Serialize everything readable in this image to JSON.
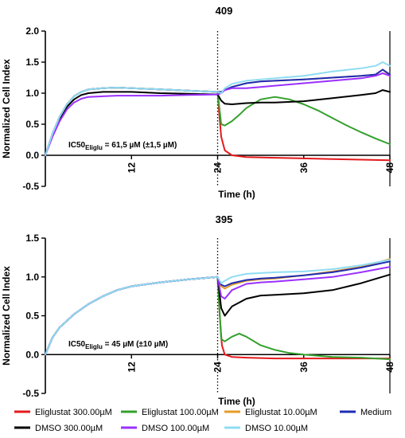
{
  "chart_data": [
    {
      "type": "line",
      "title": "409",
      "xlabel": "Time (h)",
      "ylabel": "Normalized Cell Index",
      "xlim": [
        0,
        48
      ],
      "ylim": [
        -0.5,
        2.0
      ],
      "yticks": [
        -0.5,
        0.0,
        0.5,
        1.0,
        1.5,
        2.0
      ],
      "ytick_labels": [
        "-0.5",
        "0.0",
        "0.5",
        "1.0",
        "1.5",
        "2.0"
      ],
      "xticks": [
        12,
        24,
        36,
        48
      ],
      "xtick_labels": [
        "12",
        "24",
        "36",
        "48"
      ],
      "treatment_line_x": 24,
      "annotation": {
        "prefix": "IC50",
        "subscript": "Eliglu",
        "suffix": " = 61,5 µM (±1,5 µM)"
      },
      "series": [
        {
          "name": "Eliglustat 300.00µM",
          "color": "#e41a1c",
          "x": [
            0,
            1,
            2,
            3,
            4,
            5,
            6,
            8,
            10,
            12,
            16,
            20,
            24,
            24.2,
            24.5,
            25,
            26,
            28,
            32,
            36,
            40,
            44,
            48
          ],
          "y": [
            0,
            0.35,
            0.62,
            0.82,
            0.95,
            1.02,
            1.06,
            1.08,
            1.09,
            1.08,
            1.06,
            1.04,
            1.02,
            0.7,
            0.3,
            0.08,
            0.0,
            -0.03,
            -0.04,
            -0.05,
            -0.06,
            -0.07,
            -0.08
          ]
        },
        {
          "name": "Eliglustat 100.00µM",
          "color": "#33a02c",
          "x": [
            0,
            1,
            2,
            3,
            4,
            5,
            6,
            8,
            10,
            12,
            16,
            20,
            24,
            24.5,
            25,
            26,
            27,
            28,
            30,
            32,
            34,
            36,
            38,
            40,
            42,
            44,
            46,
            48
          ],
          "y": [
            0,
            0.35,
            0.62,
            0.82,
            0.95,
            1.02,
            1.06,
            1.08,
            1.09,
            1.08,
            1.06,
            1.04,
            1.02,
            0.5,
            0.48,
            0.55,
            0.65,
            0.76,
            0.9,
            0.94,
            0.9,
            0.82,
            0.72,
            0.6,
            0.48,
            0.37,
            0.27,
            0.18
          ]
        },
        {
          "name": "Eliglustat 10.00µM",
          "color": "#e69b27",
          "x": [
            0,
            1,
            2,
            3,
            4,
            5,
            6,
            8,
            10,
            12,
            16,
            20,
            24,
            24.5,
            25,
            26,
            28,
            30,
            32,
            36,
            40,
            44,
            46,
            47,
            48
          ],
          "y": [
            0,
            0.35,
            0.62,
            0.82,
            0.95,
            1.02,
            1.06,
            1.08,
            1.09,
            1.08,
            1.06,
            1.04,
            1.02,
            1.02,
            1.05,
            1.1,
            1.16,
            1.19,
            1.2,
            1.22,
            1.25,
            1.28,
            1.3,
            1.38,
            1.28
          ]
        },
        {
          "name": "Medium",
          "color": "#1f2db3",
          "x": [
            0,
            1,
            2,
            3,
            4,
            5,
            6,
            8,
            10,
            12,
            16,
            20,
            24,
            24.5,
            25,
            26,
            28,
            30,
            32,
            36,
            40,
            44,
            46,
            47,
            48
          ],
          "y": [
            0,
            0.35,
            0.62,
            0.82,
            0.95,
            1.02,
            1.06,
            1.08,
            1.09,
            1.08,
            1.06,
            1.04,
            1.02,
            1.02,
            1.05,
            1.1,
            1.16,
            1.19,
            1.2,
            1.22,
            1.25,
            1.28,
            1.3,
            1.38,
            1.3
          ]
        },
        {
          "name": "DMSO 300.00µM",
          "color": "#000000",
          "x": [
            0,
            1,
            2,
            3,
            4,
            5,
            6,
            8,
            10,
            12,
            16,
            20,
            24,
            24.5,
            25,
            26,
            28,
            30,
            32,
            36,
            40,
            44,
            46,
            47,
            48
          ],
          "y": [
            0,
            0.32,
            0.58,
            0.78,
            0.9,
            0.97,
            1.0,
            1.02,
            1.02,
            1.02,
            1.0,
            0.99,
            0.98,
            0.88,
            0.83,
            0.82,
            0.84,
            0.85,
            0.85,
            0.87,
            0.92,
            0.97,
            1.0,
            1.05,
            1.02
          ]
        },
        {
          "name": "DMSO 100.00µM",
          "color": "#9b30ff",
          "x": [
            0,
            1,
            2,
            3,
            4,
            5,
            6,
            8,
            10,
            12,
            16,
            20,
            24,
            24.5,
            25,
            26,
            28,
            30,
            32,
            36,
            40,
            44,
            46,
            47,
            48
          ],
          "y": [
            0,
            0.3,
            0.55,
            0.74,
            0.85,
            0.91,
            0.94,
            0.95,
            0.96,
            0.96,
            0.96,
            0.97,
            0.98,
            1.0,
            1.05,
            1.08,
            1.08,
            1.1,
            1.12,
            1.16,
            1.2,
            1.24,
            1.28,
            1.32,
            1.28
          ]
        },
        {
          "name": "DMSO 10.00µM",
          "color": "#8fdcf2",
          "x": [
            0,
            1,
            2,
            3,
            4,
            5,
            6,
            8,
            10,
            12,
            16,
            20,
            24,
            24.5,
            25,
            26,
            28,
            30,
            32,
            36,
            40,
            44,
            46,
            47,
            48
          ],
          "y": [
            0,
            0.35,
            0.62,
            0.82,
            0.95,
            1.02,
            1.06,
            1.08,
            1.09,
            1.08,
            1.06,
            1.04,
            1.02,
            1.0,
            1.08,
            1.15,
            1.2,
            1.22,
            1.24,
            1.28,
            1.35,
            1.4,
            1.44,
            1.5,
            1.44
          ]
        }
      ]
    },
    {
      "type": "line",
      "title": "395",
      "xlabel": "Time (h)",
      "ylabel": "Normalized Cell Index",
      "xlim": [
        0,
        48
      ],
      "ylim": [
        -0.5,
        1.5
      ],
      "yticks": [
        -0.5,
        0.0,
        0.5,
        1.0,
        1.5
      ],
      "ytick_labels": [
        "-0.5",
        "0.0",
        "0.5",
        "1.0",
        "1.5"
      ],
      "xticks": [
        12,
        24,
        36,
        48
      ],
      "xtick_labels": [
        "12",
        "24",
        "36",
        "48"
      ],
      "treatment_line_x": 24,
      "annotation": {
        "prefix": "IC50",
        "subscript": "Eliglu",
        "suffix": " = 45 µM (±10 µM)"
      },
      "series": [
        {
          "name": "Eliglustat 300.00µM",
          "color": "#e41a1c",
          "x": [
            0,
            1,
            2,
            4,
            6,
            8,
            10,
            12,
            16,
            20,
            24,
            24.3,
            24.6,
            25,
            26,
            28,
            32,
            36,
            40,
            44,
            48
          ],
          "y": [
            0,
            0.22,
            0.35,
            0.52,
            0.65,
            0.75,
            0.83,
            0.88,
            0.93,
            0.97,
            1.0,
            0.5,
            0.12,
            0.0,
            -0.03,
            -0.04,
            -0.05,
            -0.05,
            -0.05,
            -0.05,
            -0.05
          ]
        },
        {
          "name": "Eliglustat 100.00µM",
          "color": "#33a02c",
          "x": [
            0,
            1,
            2,
            4,
            6,
            8,
            10,
            12,
            16,
            20,
            24,
            24.5,
            25,
            26,
            27,
            28,
            30,
            32,
            34,
            36,
            40,
            44,
            48
          ],
          "y": [
            0,
            0.22,
            0.35,
            0.52,
            0.65,
            0.75,
            0.83,
            0.88,
            0.93,
            0.97,
            1.0,
            0.2,
            0.17,
            0.23,
            0.27,
            0.23,
            0.12,
            0.06,
            0.02,
            0.0,
            -0.03,
            -0.04,
            -0.06
          ]
        },
        {
          "name": "Eliglustat 10.00µM",
          "color": "#e69b27",
          "x": [
            0,
            1,
            2,
            4,
            6,
            8,
            10,
            12,
            16,
            20,
            24,
            24.5,
            25,
            26,
            28,
            30,
            32,
            36,
            40,
            44,
            48
          ],
          "y": [
            0,
            0.22,
            0.35,
            0.52,
            0.65,
            0.75,
            0.83,
            0.88,
            0.93,
            0.97,
            1.0,
            0.88,
            0.85,
            0.9,
            0.95,
            0.97,
            0.98,
            1.02,
            1.07,
            1.13,
            1.23
          ]
        },
        {
          "name": "Medium",
          "color": "#1f2db3",
          "x": [
            0,
            1,
            2,
            4,
            6,
            8,
            10,
            12,
            16,
            20,
            24,
            24.5,
            25,
            26,
            28,
            30,
            32,
            36,
            40,
            44,
            48
          ],
          "y": [
            0,
            0.22,
            0.35,
            0.52,
            0.65,
            0.75,
            0.83,
            0.88,
            0.93,
            0.97,
            1.0,
            0.9,
            0.88,
            0.92,
            0.96,
            0.98,
            0.99,
            1.02,
            1.06,
            1.12,
            1.2
          ]
        },
        {
          "name": "DMSO 300.00µM",
          "color": "#000000",
          "x": [
            0,
            1,
            2,
            4,
            6,
            8,
            10,
            12,
            16,
            20,
            24,
            24.5,
            25,
            26,
            28,
            30,
            32,
            36,
            40,
            44,
            48
          ],
          "y": [
            0,
            0.22,
            0.35,
            0.52,
            0.65,
            0.75,
            0.83,
            0.88,
            0.93,
            0.97,
            1.0,
            0.6,
            0.5,
            0.62,
            0.72,
            0.76,
            0.77,
            0.79,
            0.83,
            0.92,
            1.03
          ]
        },
        {
          "name": "DMSO 100.00µM",
          "color": "#9b30ff",
          "x": [
            0,
            1,
            2,
            4,
            6,
            8,
            10,
            12,
            16,
            20,
            24,
            24.5,
            25,
            26,
            28,
            30,
            32,
            36,
            40,
            44,
            48
          ],
          "y": [
            0,
            0.22,
            0.35,
            0.52,
            0.65,
            0.75,
            0.83,
            0.88,
            0.93,
            0.97,
            1.0,
            0.75,
            0.72,
            0.83,
            0.91,
            0.93,
            0.94,
            0.97,
            1.0,
            1.06,
            1.13
          ]
        },
        {
          "name": "DMSO 10.00µM",
          "color": "#8fdcf2",
          "x": [
            0,
            1,
            2,
            4,
            6,
            8,
            10,
            12,
            16,
            20,
            24,
            24.5,
            25,
            26,
            28,
            30,
            32,
            36,
            40,
            44,
            48
          ],
          "y": [
            0,
            0.22,
            0.35,
            0.52,
            0.65,
            0.75,
            0.83,
            0.88,
            0.93,
            0.97,
            1.0,
            0.92,
            0.95,
            1.0,
            1.04,
            1.05,
            1.06,
            1.07,
            1.1,
            1.15,
            1.22
          ]
        }
      ]
    }
  ],
  "legend": {
    "items": [
      {
        "label": "Eliglustat 300.00µM",
        "color": "#e41a1c"
      },
      {
        "label": "Eliglustat 100.00µM",
        "color": "#33a02c"
      },
      {
        "label": "Eliglustat 10.00µM",
        "color": "#e69b27"
      },
      {
        "label": "Medium",
        "color": "#1f2db3"
      },
      {
        "label": "DMSO 300.00µM",
        "color": "#000000"
      },
      {
        "label": "DMSO 100.00µM",
        "color": "#9b30ff"
      },
      {
        "label": "DMSO 10.00µM",
        "color": "#8fdcf2"
      }
    ]
  }
}
